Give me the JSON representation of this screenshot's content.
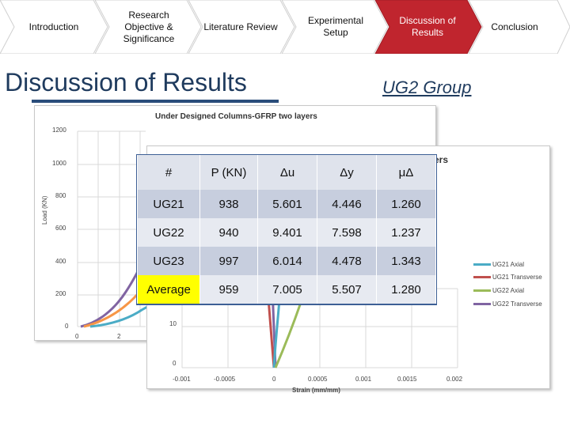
{
  "nav": {
    "steps": [
      {
        "label": "Introduction"
      },
      {
        "label": "Research Objective & Significance"
      },
      {
        "label": "Literature Review"
      },
      {
        "label": "Experimental Setup"
      },
      {
        "label": "Discussion of Results"
      },
      {
        "label": "Conclusion"
      }
    ],
    "active_index": 4,
    "active_color": "#c0252e"
  },
  "title": "Discussion of Results",
  "group_label": "UG2 Group",
  "chart_back": {
    "title": "Under Designed Columns-GFRP two layers",
    "ylabel": "Load (KN)",
    "yticks": [
      "1200",
      "1000",
      "800",
      "600",
      "400",
      "200",
      "0"
    ],
    "xticks": [
      "0",
      "2"
    ]
  },
  "chart_front": {
    "title_fragment": "ers",
    "yticks": [
      "10",
      "0"
    ],
    "xticks": [
      "-0.001",
      "-0.0005",
      "0",
      "0.0005",
      "0.001",
      "0.0015",
      "0.002"
    ],
    "xlabel": "Strain (mm/mm)",
    "legend": [
      {
        "name": "UG21 Axial",
        "color": "#4bacc6"
      },
      {
        "name": "UG21 Transverse",
        "color": "#c0504d"
      },
      {
        "name": "UG22 Axial",
        "color": "#9bbb59"
      },
      {
        "name": "UG22 Transverse",
        "color": "#8064a2"
      }
    ]
  },
  "table": {
    "headers": [
      "#",
      "P (KN)",
      "Δu",
      "Δy",
      "μΔ"
    ],
    "rows": [
      [
        "UG21",
        "938",
        "5.601",
        "4.446",
        "1.260"
      ],
      [
        "UG22",
        "940",
        "9.401",
        "7.598",
        "1.237"
      ],
      [
        "UG23",
        "997",
        "6.014",
        "4.478",
        "1.343"
      ],
      [
        "Average",
        "959",
        "7.005",
        "5.507",
        "1.280"
      ]
    ]
  }
}
